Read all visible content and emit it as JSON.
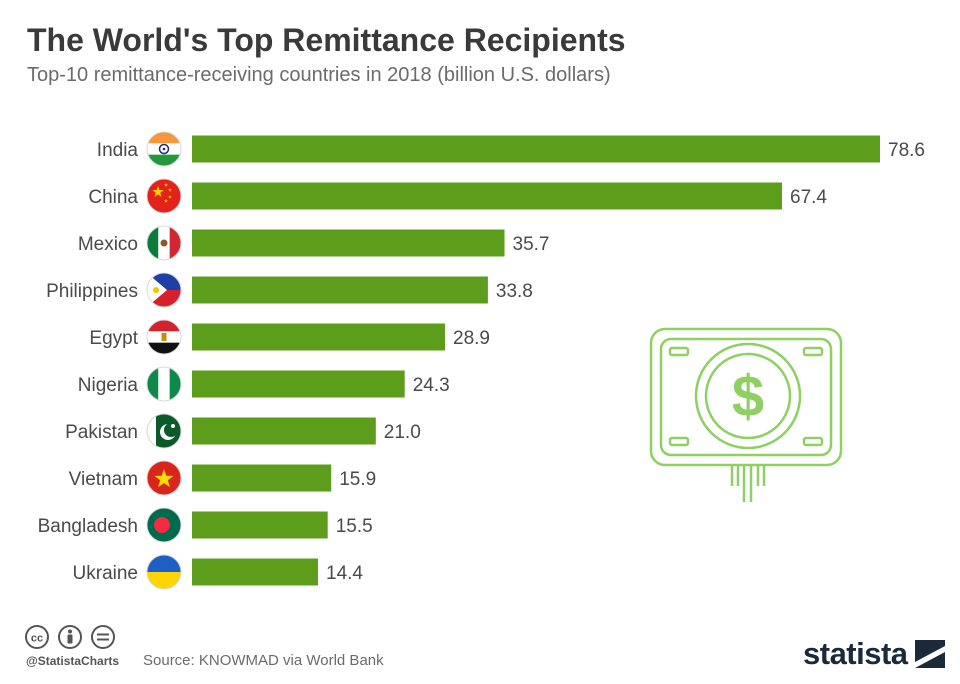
{
  "header": {
    "title": "The World's Top Remittance Recipients",
    "subtitle": "Top-10 remittance-receiving countries in 2018 (billion U.S. dollars)"
  },
  "chart_data": {
    "type": "bar",
    "orientation": "horizontal",
    "categories": [
      "India",
      "China",
      "Mexico",
      "Philippines",
      "Egypt",
      "Nigeria",
      "Pakistan",
      "Vietnam",
      "Bangladesh",
      "Ukraine"
    ],
    "values": [
      78.6,
      67.4,
      35.7,
      33.8,
      28.9,
      24.3,
      21.0,
      15.9,
      15.5,
      14.4
    ],
    "value_labels": [
      "78.6",
      "67.4",
      "35.7",
      "33.8",
      "28.9",
      "24.3",
      "21.0",
      "15.9",
      "15.5",
      "14.4"
    ],
    "flag_icons": [
      "india-flag-icon",
      "china-flag-icon",
      "mexico-flag-icon",
      "philippines-flag-icon",
      "egypt-flag-icon",
      "nigeria-flag-icon",
      "pakistan-flag-icon",
      "vietnam-flag-icon",
      "bangladesh-flag-icon",
      "ukraine-flag-icon"
    ],
    "xlim": [
      0,
      78.6
    ],
    "grid": false,
    "legend": "none",
    "bar_color": "#5c9d1c"
  },
  "decoration": {
    "icon": "money-bill-dollar-icon",
    "color": "#8fcf63"
  },
  "footer": {
    "license_icons": [
      "cc-icon",
      "by-icon",
      "nd-icon"
    ],
    "handle": "@StatistaCharts",
    "source": "Source: KNOWMAD via World Bank",
    "logo_text": "statista",
    "logo_icon": "statista-logo-icon"
  }
}
